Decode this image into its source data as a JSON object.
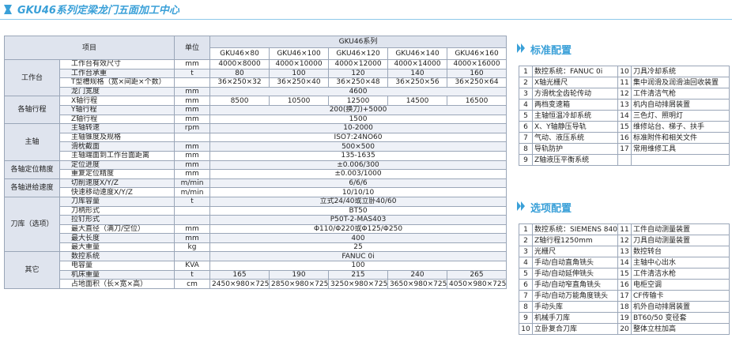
{
  "title": "GKU46系列定梁龙门五面加工中心",
  "spec": {
    "item": "项目",
    "unit": "单位",
    "series": "GKU46系列",
    "models": [
      "GKU46×80",
      "GKU46×100",
      "GKU46×120",
      "GKU46×140",
      "GKU46×160"
    ],
    "groups": [
      {
        "name": "工作台",
        "rows": [
          {
            "label": "工作台有效尺寸",
            "unit": "mm",
            "values": [
              "4000×8000",
              "4000×10000",
              "4000×12000",
              "4000×14000",
              "4000×16000"
            ]
          },
          {
            "label": "工作台承重",
            "unit": "t",
            "values": [
              80,
              100,
              120,
              140,
              160
            ]
          },
          {
            "label": "T型槽规格（宽×间距×个数）",
            "values": [
              "36×250×32",
              "36×250×40",
              "36×250×48",
              "36×250×56",
              "36×250×64"
            ]
          },
          {
            "label": "龙门宽度",
            "unit": "mm",
            "value": 4600
          }
        ]
      },
      {
        "name": "各轴行程",
        "rows": [
          {
            "label": "X轴行程",
            "unit": "mm",
            "values": [
              8500,
              10500,
              12500,
              14500,
              16500
            ]
          },
          {
            "label": "Y轴行程",
            "unit": "mm",
            "value": "200(换刀)+5000"
          },
          {
            "label": "Z轴行程",
            "unit": "mm",
            "value": 1500
          }
        ]
      },
      {
        "name": "主轴",
        "rows": [
          {
            "label": "主轴转速",
            "unit": "rpm",
            "value": "10-2000"
          },
          {
            "label": "主轴锥度及规格",
            "value": "ISO7:24NO60"
          },
          {
            "label": "滑枕截面",
            "unit": "mm",
            "value": "500×500"
          },
          {
            "label": "主轴端面到工作台面距离",
            "unit": "mm",
            "value": "135-1635"
          }
        ]
      },
      {
        "name": "各轴定位精度",
        "rows": [
          {
            "label": "定位进度",
            "unit": "mm",
            "value": "±0.006/300"
          },
          {
            "label": "重复定位精度",
            "unit": "mm",
            "value": "±0.003/1000"
          }
        ]
      },
      {
        "name": "各轴进给速度",
        "rows": [
          {
            "label": "切削速度X/Y/Z",
            "unit": "m/min",
            "value": "6/6/6"
          },
          {
            "label": "快速移动速度X/Y/Z",
            "unit": "m/min",
            "value": "10/10/10"
          }
        ]
      },
      {
        "name": "刀库（选项）",
        "rows": [
          {
            "label": "刀库容量",
            "unit": "t",
            "value": "立式24/40或立卧40/60"
          },
          {
            "label": "刀柄形式",
            "value": "BT50"
          },
          {
            "label": "拉钉形式",
            "value": "P50T-2-MAS403"
          },
          {
            "label": "最大直径（满刀/空位）",
            "unit": "mm",
            "value": "Φ110/Φ220或Φ125/Φ250"
          },
          {
            "label": "最大长度",
            "unit": "mm",
            "value": 400
          },
          {
            "label": "最大重量",
            "unit": "kg",
            "value": 25
          }
        ]
      },
      {
        "name": "其它",
        "rows": [
          {
            "label": "数控系统",
            "value": "FANUC 0i"
          },
          {
            "label": "电容量",
            "unit": "KVA",
            "value": 100
          },
          {
            "label": "机床重量",
            "unit": "t",
            "values": [
              165,
              190,
              215,
              240,
              265
            ]
          },
          {
            "label": "占地面积（长×宽×高）",
            "unit": "cm",
            "values": [
              "2450×980×725",
              "2850×980×725",
              "3250×980×725",
              "3650×980×725",
              "4050×980×725"
            ]
          }
        ]
      }
    ]
  },
  "standard": {
    "title": "标准配置",
    "items": [
      {
        "no": 1,
        "text": "数控系统：FANUC 0i"
      },
      {
        "no": 2,
        "text": "X轴光栅尺"
      },
      {
        "no": 3,
        "text": "方滑枕全齿轮传动"
      },
      {
        "no": 4,
        "text": "两档变速箱"
      },
      {
        "no": 5,
        "text": "主轴恒温冷却系统"
      },
      {
        "no": 6,
        "text": "X、Y轴静压导轨"
      },
      {
        "no": 7,
        "text": "气动、液压系统"
      },
      {
        "no": 8,
        "text": "导轨防护"
      },
      {
        "no": 9,
        "text": "Z轴液压平衡系统"
      },
      {
        "no": 10,
        "text": "刀具冷却系统"
      },
      {
        "no": 11,
        "text": "集中润滑及润滑油回收装置"
      },
      {
        "no": 12,
        "text": "工件清洁气枪"
      },
      {
        "no": 13,
        "text": "机内自动排屑装置"
      },
      {
        "no": 14,
        "text": "三色灯、照明灯"
      },
      {
        "no": 15,
        "text": "维修站台、梯子、扶手"
      },
      {
        "no": 16,
        "text": "标准附件和相关文件"
      },
      {
        "no": 17,
        "text": "常用维修工具"
      }
    ]
  },
  "optional": {
    "title": "选项配置",
    "items": [
      {
        "no": 1,
        "text": "数控系统：SIEMENS 840D sl"
      },
      {
        "no": 2,
        "text": "Z轴行程1250mm"
      },
      {
        "no": 3,
        "text": "光栅尺"
      },
      {
        "no": 4,
        "text": "手动/自动直角铣头"
      },
      {
        "no": 5,
        "text": "手动/自动延伸铣头"
      },
      {
        "no": 6,
        "text": "手动/自动窄直角铣头"
      },
      {
        "no": 7,
        "text": "手动/自动万能角度铣头"
      },
      {
        "no": 8,
        "text": "手动头库"
      },
      {
        "no": 9,
        "text": "机械手刀库"
      },
      {
        "no": 10,
        "text": "立卧复合刀库"
      },
      {
        "no": 11,
        "text": "工件自动测量装置"
      },
      {
        "no": 12,
        "text": "刀具自动测量装置"
      },
      {
        "no": 13,
        "text": "数控转台"
      },
      {
        "no": 14,
        "text": "主轴中心出水"
      },
      {
        "no": 15,
        "text": "工件清洁水枪"
      },
      {
        "no": 16,
        "text": "电柜空调"
      },
      {
        "no": 17,
        "text": "CF传输卡"
      },
      {
        "no": 18,
        "text": "机外自动排屑装置"
      },
      {
        "no": 19,
        "text": "BT60/50 变径套"
      },
      {
        "no": 20,
        "text": "整体立柱加高"
      }
    ]
  }
}
